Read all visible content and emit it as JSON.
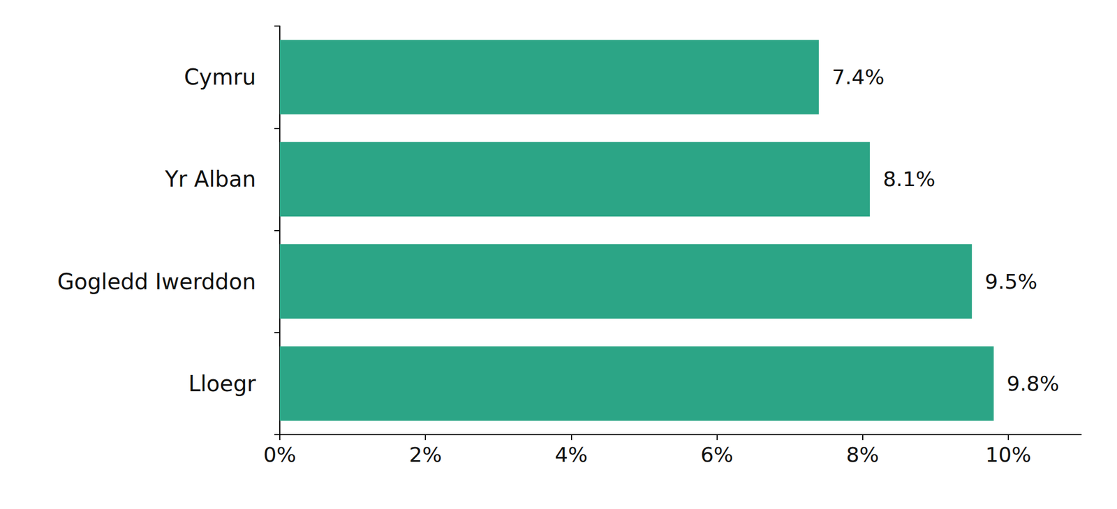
{
  "chart_data": {
    "type": "bar",
    "orientation": "horizontal",
    "categories": [
      "Cymru",
      "Yr Alban",
      "Gogledd Iwerddon",
      "Lloegr"
    ],
    "values": [
      7.4,
      8.1,
      9.5,
      9.8
    ],
    "value_labels": [
      "7.4%",
      "8.1%",
      "9.5%",
      "9.8%"
    ],
    "data_labels": true,
    "color": "#2ca586",
    "xlim": [
      0,
      11
    ],
    "xticks": [
      {
        "value": 0,
        "label": "0%"
      },
      {
        "value": 2,
        "label": "2%"
      },
      {
        "value": 4,
        "label": "4%"
      },
      {
        "value": 6,
        "label": "6%"
      },
      {
        "value": 8,
        "label": "8%"
      },
      {
        "value": 10,
        "label": "10%"
      }
    ],
    "grid": false
  }
}
